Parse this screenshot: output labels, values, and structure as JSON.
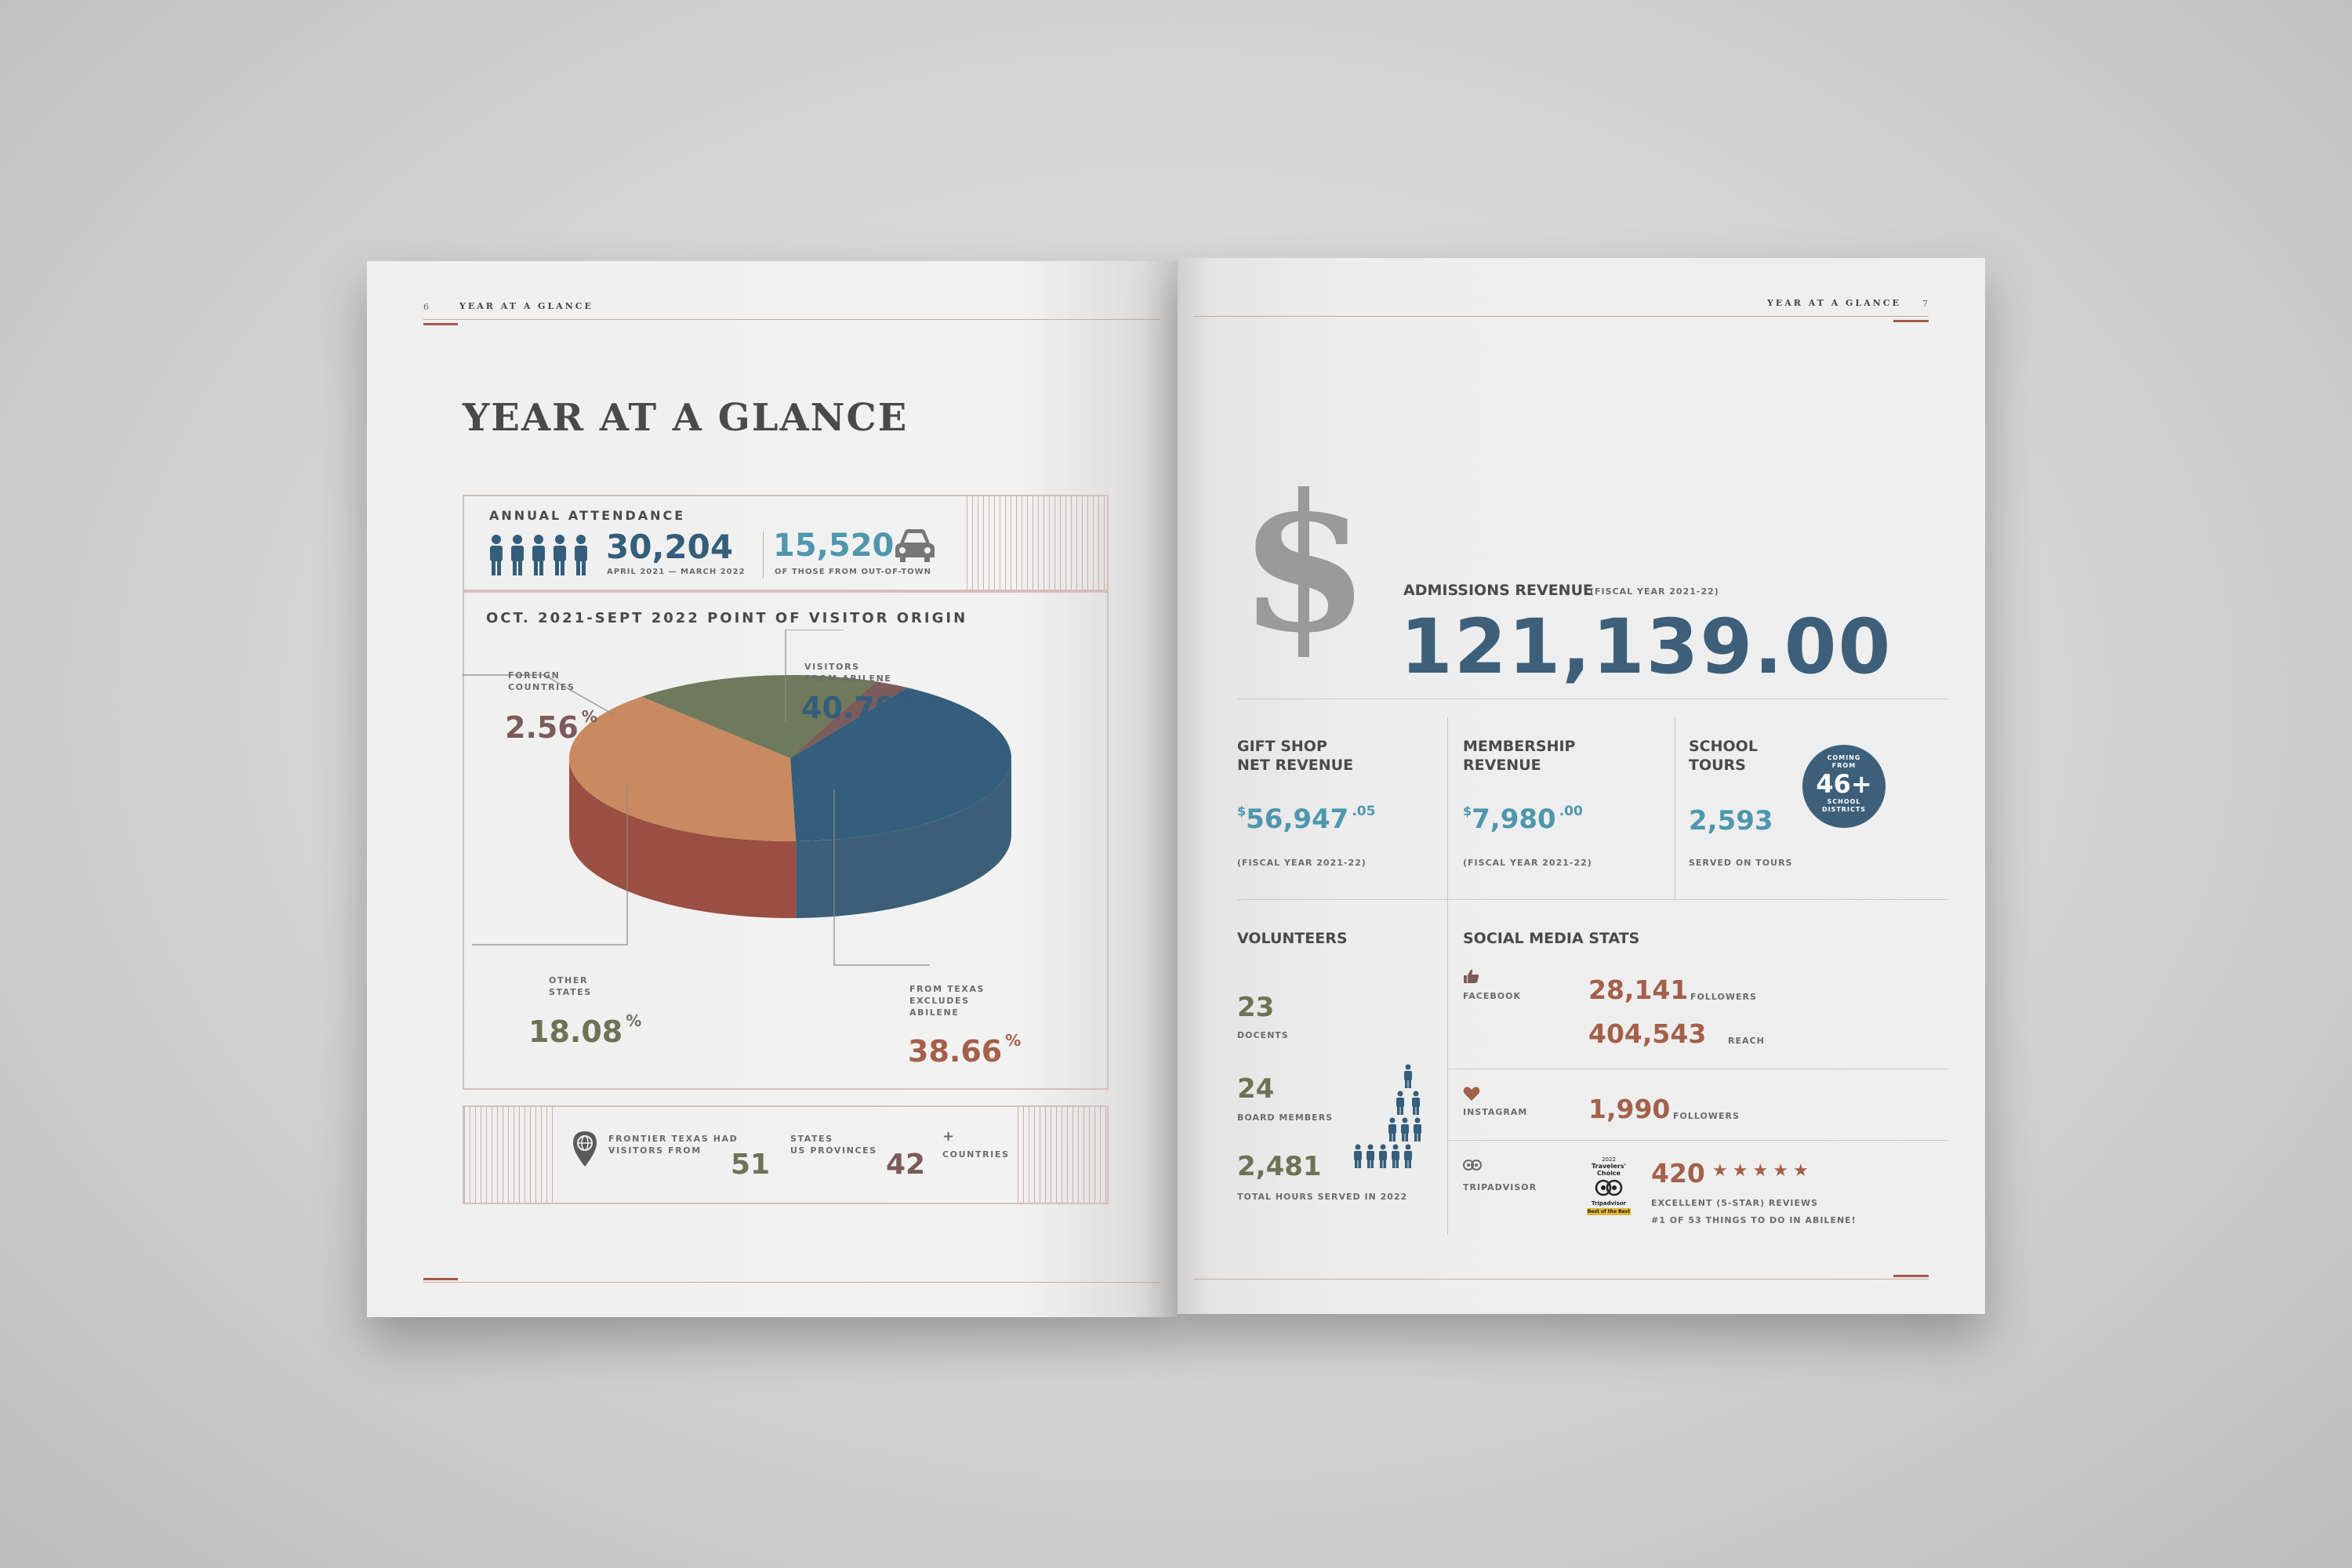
{
  "left_page": {
    "page_number": "6",
    "running_head": "YEAR AT A GLANCE",
    "title": "YEAR AT A GLANCE",
    "attendance": {
      "label": "ANNUAL ATTENDANCE",
      "value": "30,204",
      "period": "APRIL 2021 — MARCH 2022",
      "out_of_town_value": "15,520",
      "out_of_town_label": "OF THOSE FROM OUT-OF-TOWN"
    },
    "origin_title": "OCT. 2021-SEPT 2022 POINT OF VISITOR ORIGIN",
    "footer": {
      "visitors_label_1": "FRONTIER TEXAS HAD",
      "visitors_label_2": "VISITORS FROM",
      "states_value": "51",
      "states_label_1": "STATES",
      "states_label_2": "US PROVINCES",
      "countries_value": "42",
      "countries_plus": "+",
      "countries_label": "COUNTRIES"
    }
  },
  "chart_data": {
    "type": "pie",
    "title": "OCT. 2021-SEPT 2022 POINT OF VISITOR ORIGIN",
    "unit": "%",
    "slices": [
      {
        "label_1": "VISITORS",
        "label_2": "FROM ABILENE",
        "value": 40.7,
        "display": "40.70",
        "color": "#345e7b"
      },
      {
        "label_1": "FROM TEXAS",
        "label_2": "EXCLUDES",
        "label_3": "ABILENE",
        "value": 38.66,
        "display": "38.66",
        "color": "#c98a61"
      },
      {
        "label_1": "OTHER",
        "label_2": "STATES",
        "value": 18.08,
        "display": "18.08",
        "color": "#6e7a5b"
      },
      {
        "label_1": "FOREIGN",
        "label_2": "COUNTRIES",
        "value": 2.56,
        "display": "2.56",
        "color": "#7c5b5b"
      }
    ],
    "side_colors": [
      "#3b5f78",
      "#9a4f42",
      "#55584a",
      "#4d4d52"
    ]
  },
  "right_page": {
    "page_number": "7",
    "running_head": "YEAR AT A GLANCE",
    "dollar_sign": "$",
    "admissions": {
      "label": "ADMISSIONS REVENUE",
      "period": "(FISCAL YEAR 2021-22)",
      "value": "121,139.00"
    },
    "gift_shop": {
      "title_1": "GIFT SHOP",
      "title_2": "NET REVENUE",
      "currency": "$",
      "value": "56,947",
      "cents": ".05",
      "period": "(FISCAL YEAR 2021-22)"
    },
    "membership": {
      "title_1": "MEMBERSHIP",
      "title_2": "REVENUE",
      "currency": "$",
      "value": "7,980",
      "cents": ".00",
      "period": "(FISCAL YEAR 2021-22)"
    },
    "school_tours": {
      "title_1": "SCHOOL",
      "title_2": "TOURS",
      "value": "2,593",
      "caption": "SERVED ON TOURS",
      "badge_top_1": "COMING",
      "badge_top_2": "FROM",
      "badge_value": "46+",
      "badge_bottom_1": "SCHOOL",
      "badge_bottom_2": "DISTRICTS"
    },
    "volunteers": {
      "title": "VOLUNTEERS",
      "docents_value": "23",
      "docents_label": "DOCENTS",
      "board_value": "24",
      "board_label": "BOARD MEMBERS",
      "hours_value": "2,481",
      "hours_label": "TOTAL HOURS SERVED IN 2022"
    },
    "social": {
      "title": "SOCIAL MEDIA STATS",
      "facebook_label": "FACEBOOK",
      "facebook_followers": "28,141",
      "followers_label": "FOLLOWERS",
      "facebook_reach": "404,543",
      "reach_label": "REACH",
      "instagram_label": "INSTAGRAM",
      "instagram_followers": "1,990",
      "tripadvisor_label": "TRIPADVISOR",
      "ta_badge_1": "2022",
      "ta_badge_2": "Travelers'",
      "ta_badge_3": "Choice",
      "ta_badge_4": "Tripadvisor",
      "ta_badge_5": "Best of the Best",
      "ta_reviews": "420",
      "ta_rating": 5,
      "ta_caption_1": "EXCELLENT (5-STAR) REVIEWS",
      "ta_caption_2": "#1 OF 53 THINGS TO DO IN ABILENE!"
    }
  },
  "colors": {
    "navy": "#3d5f7a",
    "teal": "#4f97ad",
    "rust": "#a4604a",
    "mauve": "#7c5b5b",
    "olive": "#6e7356",
    "gray_dollar": "#9a9a9a"
  }
}
